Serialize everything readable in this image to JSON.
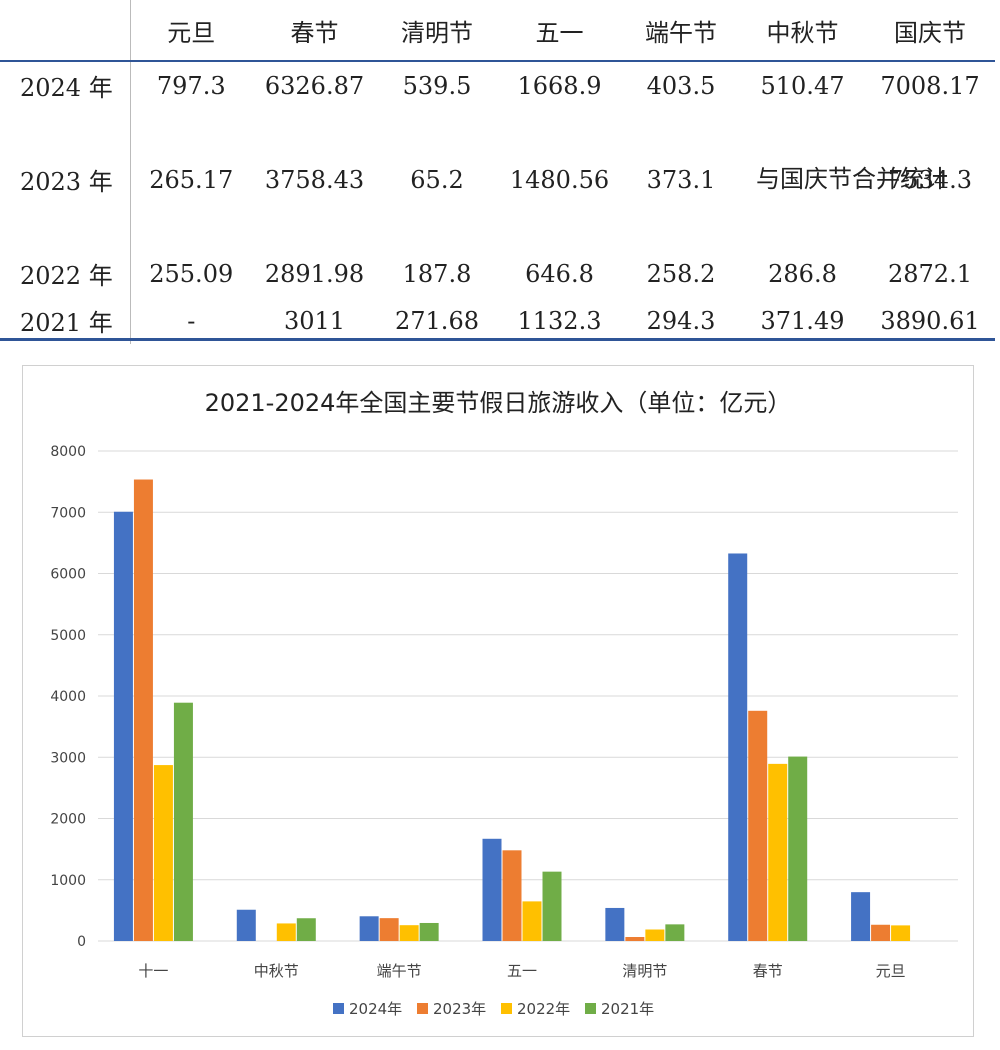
{
  "table": {
    "headers": [
      "",
      "元旦",
      "春节",
      "清明节",
      "五一",
      "端午节",
      "中秋节",
      "国庆节"
    ],
    "rows": [
      {
        "label": "2024 年",
        "cells": [
          "797.3",
          "6326.87",
          "539.5",
          "1668.9",
          "403.5",
          "510.47",
          "7008.17"
        ]
      },
      {
        "label": "2023 年",
        "cells": [
          "265.17",
          "3758.43",
          "65.2",
          "1480.56",
          "373.1",
          "与国庆节合并统计",
          "7534.3"
        ]
      },
      {
        "label": "2022 年",
        "cells": [
          "255.09",
          "2891.98",
          "187.8",
          "646.8",
          "258.2",
          "286.8",
          "2872.1"
        ]
      },
      {
        "label": "2021 年",
        "cells": [
          "-",
          "3011",
          "271.68",
          "1132.3",
          "294.3",
          "371.49",
          "3890.61"
        ]
      }
    ]
  },
  "chart_data": {
    "type": "bar",
    "title": "2021-2024年全国主要节假日旅游收入（单位：亿元）",
    "categories": [
      "十一",
      "中秋节",
      "端午节",
      "五一",
      "清明节",
      "春节",
      "元旦"
    ],
    "series": [
      {
        "name": "2024年",
        "color": "#4472c4",
        "values": [
          7008.17,
          510.47,
          403.5,
          1668.9,
          539.5,
          6326.87,
          797.3
        ]
      },
      {
        "name": "2023年",
        "color": "#ed7d31",
        "values": [
          7534.3,
          0,
          373.1,
          1480.56,
          65.2,
          3758.43,
          265.17
        ]
      },
      {
        "name": "2022年",
        "color": "#ffc000",
        "values": [
          2872.1,
          286.8,
          258.2,
          646.8,
          187.8,
          2891.98,
          255.09
        ]
      },
      {
        "name": "2021年",
        "color": "#70ad47",
        "values": [
          3890.61,
          371.49,
          294.3,
          1132.3,
          271.68,
          3011,
          0
        ]
      }
    ],
    "yticks": [
      "0",
      "1000",
      "2000",
      "3000",
      "4000",
      "5000",
      "6000",
      "7000",
      "8000"
    ],
    "ylim": [
      0,
      8000
    ],
    "grid": true,
    "legend": "bottom"
  }
}
